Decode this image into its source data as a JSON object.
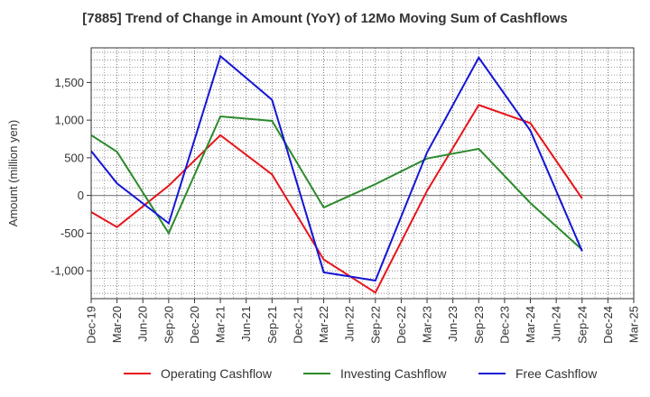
{
  "chart_data": {
    "type": "line",
    "title": "[7885]  Trend of Change in Amount (YoY) of 12Mo Moving Sum of Cashflows",
    "xlabel": "",
    "ylabel": "Amount (million yen)",
    "ylim": [
      -1370,
      1960
    ],
    "yticks": [
      1500,
      1000,
      500,
      0,
      -500,
      -1000
    ],
    "ytick_labels": [
      "1,500",
      "1,000",
      "500",
      "0",
      "-500",
      "-1,000"
    ],
    "categories": [
      "Dec-19",
      "Mar-20",
      "Jun-20",
      "Sep-20",
      "Dec-20",
      "Mar-21",
      "Jun-21",
      "Sep-21",
      "Dec-21",
      "Mar-22",
      "Jun-22",
      "Sep-22",
      "Dec-22",
      "Mar-23",
      "Jun-23",
      "Sep-23",
      "Dec-23",
      "Mar-24",
      "Jun-24",
      "Sep-24",
      "Dec-24",
      "Mar-25"
    ],
    "grid": true,
    "legend_position": "bottom",
    "series": [
      {
        "name": "Operating Cashflow",
        "color": "#e8141b",
        "values": [
          -220,
          -420,
          null,
          130,
          null,
          800,
          null,
          280,
          null,
          -850,
          null,
          -1290,
          null,
          60,
          null,
          1200,
          null,
          960,
          null,
          -40,
          null,
          null
        ]
      },
      {
        "name": "Investing Cashflow",
        "color": "#2b8a2b",
        "values": [
          800,
          580,
          null,
          -500,
          null,
          1050,
          null,
          990,
          null,
          -160,
          null,
          150,
          null,
          490,
          null,
          620,
          null,
          -100,
          null,
          -720,
          null,
          null
        ]
      },
      {
        "name": "Free Cashflow",
        "color": "#1515d6",
        "values": [
          590,
          160,
          null,
          -370,
          null,
          1850,
          null,
          1270,
          null,
          -1020,
          null,
          -1130,
          null,
          570,
          null,
          1830,
          null,
          860,
          null,
          -740,
          null,
          null
        ]
      }
    ]
  }
}
